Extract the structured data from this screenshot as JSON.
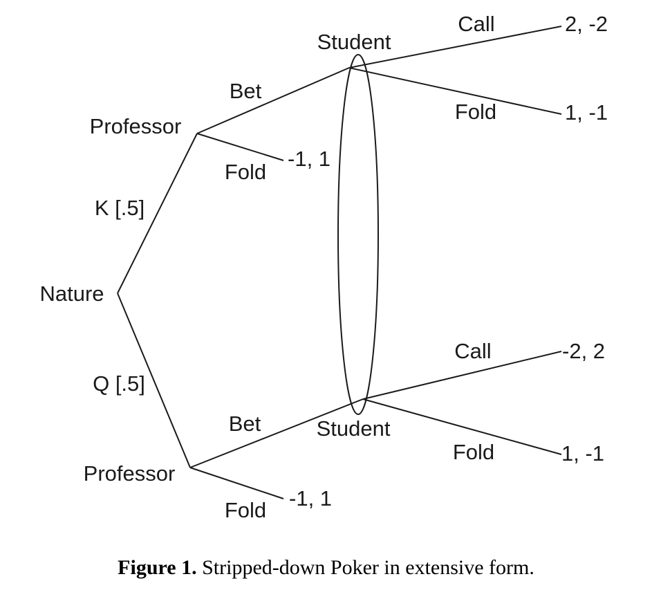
{
  "tree": {
    "nodes": {
      "nature": "Nature",
      "professor_top": "Professor",
      "professor_bottom": "Professor",
      "student_top": "Student",
      "student_bottom": "Student"
    },
    "branches": {
      "nature_king": "K [.5]",
      "nature_queen": "Q [.5]",
      "prof_top_bet": "Bet",
      "prof_top_fold": "Fold",
      "prof_bottom_bet": "Bet",
      "prof_bottom_fold": "Fold",
      "student_top_call": "Call",
      "student_top_fold": "Fold",
      "student_bottom_call": "Call",
      "student_bottom_fold": "Fold"
    },
    "payoffs": {
      "prof_top_fold": "-1, 1",
      "student_top_call": "2, -2",
      "student_top_fold": "1, -1",
      "prof_bottom_fold": "-1, 1",
      "student_bottom_call": "-2, 2",
      "student_bottom_fold": "1, -1"
    }
  },
  "caption": {
    "label": "Figure 1.",
    "text": " Stripped-down Poker in extensive form."
  }
}
